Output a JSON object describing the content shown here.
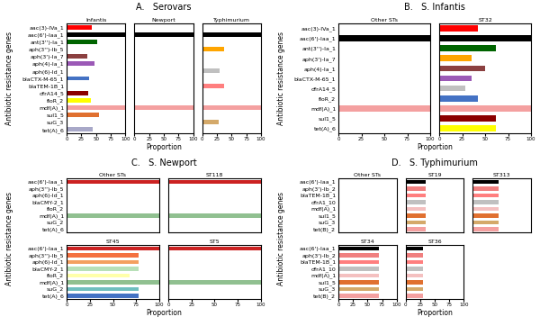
{
  "chart_data": [
    {
      "type": "bar",
      "orientation": "horizontal",
      "title": "A.   Serovars",
      "x_label": "Proportion",
      "y_label": "Antibiotic resistance genes",
      "categories": [
        "aac(3)-IVa_1",
        "aac(6')-Iaa_1",
        "ant(3'')-Ia_1",
        "aph(3'')-Ib_5",
        "aph(3')-Ia_7",
        "aph(4)-Ia_1",
        "aph(6)-Id_1",
        "blaCTX-M-65_1",
        "blaTEM-1B_1",
        "dfrA14_5",
        "floR_2",
        "mdf(A)_1",
        "sul1_5",
        "suG_3",
        "tet(A)_6"
      ],
      "colors": [
        "#ff0000",
        "#000000",
        "#006400",
        "#ffa500",
        "#8b4040",
        "#9b59b6",
        "#c0c0c0",
        "#4472c4",
        "#ff7f7f",
        "#8b0000",
        "#ffff00",
        "#f4a0a0",
        "#e07030",
        "#d4a96a",
        "#a8a8c8"
      ],
      "series": [
        {
          "name": "Infantis",
          "values": [
            43,
            100,
            52,
            0,
            35,
            48,
            0,
            38,
            0,
            37,
            42,
            100,
            55,
            0,
            45
          ]
        },
        {
          "name": "Newport",
          "values": [
            0,
            100,
            0,
            0,
            0,
            0,
            0,
            0,
            0,
            0,
            0,
            100,
            0,
            0,
            0
          ]
        },
        {
          "name": "Typhimurium",
          "values": [
            0,
            100,
            0,
            38,
            0,
            0,
            30,
            0,
            38,
            0,
            0,
            100,
            0,
            28,
            0
          ]
        }
      ],
      "xlim": [
        0,
        100
      ],
      "xticks": [
        0,
        25,
        50,
        75,
        100
      ]
    },
    {
      "type": "bar",
      "orientation": "horizontal",
      "title": "B.   S. Infantis",
      "x_label": "Proportion",
      "y_label": "Antibiotic resistance genes",
      "categories": [
        "aac(3)-IVa_1",
        "aac(6')-Iaa_1",
        "ant(3'')-Ia_1",
        "aph(3')-Ia_7",
        "aph(4)-Ia_1",
        "blaCTX-M-65_1",
        "dfrA14_5",
        "floR_2",
        "mdf(A)_1",
        "sul1_5",
        "tet(A)_6"
      ],
      "colors": [
        "#ff0000",
        "#000000",
        "#006400",
        "#ffa500",
        "#8b4040",
        "#9b59b6",
        "#c0c0c0",
        "#4472c4",
        "#f4a0a0",
        "#8b0000",
        "#ffff00"
      ],
      "series": [
        {
          "name": "Other STs",
          "values": [
            0,
            100,
            0,
            0,
            0,
            0,
            0,
            0,
            100,
            0,
            0
          ]
        },
        {
          "name": "ST32",
          "values": [
            42,
            100,
            62,
            35,
            50,
            35,
            28,
            42,
            100,
            62,
            62
          ]
        }
      ],
      "xlim": [
        0,
        100
      ],
      "xticks": [
        0,
        25,
        50,
        75,
        100
      ]
    },
    {
      "type": "bar",
      "orientation": "horizontal",
      "title": "C.   S. Newport",
      "y_label": "Antibiotic resistance genes",
      "tick_labels": "y",
      "categories": [
        "aac(6')-Iaa_1",
        "aph(3'')-Ib_5",
        "aph(6)-Id_1",
        "blaCMY-2_1",
        "floR_2",
        "mdf(A)_1",
        "suG_2",
        "tet(A)_6"
      ],
      "colors": [
        "#cc2222",
        "#f47040",
        "#f4a060",
        "#b8e0b8",
        "#ffffaa",
        "#90c090",
        "#6fbfbf",
        "#a8a8c8"
      ],
      "series": [
        {
          "name": "Other STs",
          "values": [
            100,
            0,
            0,
            0,
            0,
            100,
            0,
            0
          ]
        },
        {
          "name": "ST118",
          "values": [
            100,
            0,
            0,
            0,
            0,
            100,
            0,
            0
          ]
        }
      ],
      "xlim": [
        0,
        100
      ],
      "xticks": [
        0,
        25,
        50,
        75,
        100
      ]
    },
    {
      "type": "bar",
      "orientation": "horizontal",
      "x_label": "Proportion",
      "categories": [
        "aac(6')-Iaa_1",
        "aph(3'')-Ib_5",
        "aph(6)-Id_1",
        "blaCMY-2_1",
        "floR_2",
        "mdf(A)_1",
        "suG_2",
        "tet(A)_6"
      ],
      "colors": [
        "#cc2222",
        "#f47040",
        "#f4a060",
        "#b8e0b8",
        "#ffffaa",
        "#90c090",
        "#6fbfbf",
        "#4472c4"
      ],
      "series": [
        {
          "name": "ST45",
          "values": [
            100,
            78,
            78,
            78,
            68,
            100,
            78,
            78
          ]
        },
        {
          "name": "ST5",
          "values": [
            100,
            0,
            0,
            0,
            0,
            100,
            0,
            0
          ]
        }
      ],
      "xlim": [
        0,
        100
      ],
      "xticks": [
        0,
        25,
        50,
        75,
        100
      ]
    },
    {
      "type": "bar",
      "orientation": "horizontal",
      "title": "D.   S. Typhimurium",
      "y_label": "Antibiotic resistance genes",
      "tick_labels": "y",
      "categories": [
        "aac(6')-Iaa_1",
        "aph(3')-Ib_2",
        "blaTEM-1B_1",
        "dfrA1_10",
        "mdf(A)_1",
        "sul1_5",
        "suG_3",
        "tet(B)_2"
      ],
      "colors": [
        "#000000",
        "#f08080",
        "#ff7f7f",
        "#c0c0c0",
        "#f4c0c0",
        "#e07030",
        "#d4a96a",
        "#f4a0a0"
      ],
      "series": [
        {
          "name": "Other STs",
          "values": [
            0,
            0,
            0,
            0,
            0,
            0,
            0,
            0
          ]
        },
        {
          "name": "ST19",
          "values": [
            35,
            35,
            35,
            35,
            35,
            35,
            35,
            35
          ]
        },
        {
          "name": "ST313",
          "values": [
            45,
            45,
            45,
            45,
            45,
            45,
            45,
            45
          ]
        }
      ],
      "xlim": [
        0,
        100
      ],
      "xticks": [
        0,
        25,
        50,
        75,
        100
      ]
    },
    {
      "type": "bar",
      "orientation": "horizontal",
      "x_label": "Proportion",
      "categories": [
        "aac(6')-Iaa_1",
        "aph(3')-Ib_2",
        "blaTEM-1B_1",
        "dfrA1_10",
        "mdf(A)_1",
        "sul1_5",
        "suG_3",
        "tet(B)_2"
      ],
      "colors": [
        "#000000",
        "#f08080",
        "#ff7f7f",
        "#c0c0c0",
        "#f4c0c0",
        "#e07030",
        "#d4a96a",
        "#f4a0a0"
      ],
      "series": [
        {
          "name": "ST34",
          "values": [
            70,
            70,
            70,
            70,
            70,
            70,
            70,
            70
          ]
        },
        {
          "name": "ST36",
          "values": [
            30,
            30,
            30,
            30,
            30,
            30,
            30,
            30
          ]
        }
      ],
      "xlim": [
        0,
        100
      ],
      "xticks": [
        0,
        25,
        50,
        75,
        100
      ]
    }
  ]
}
